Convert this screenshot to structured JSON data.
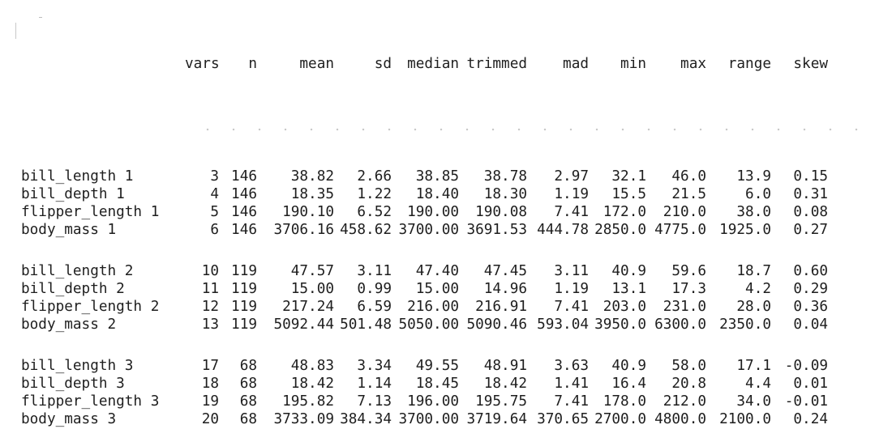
{
  "table": {
    "headers": [
      "",
      "vars",
      "n",
      "mean",
      "sd",
      "median",
      "trimmed",
      "mad",
      "min",
      "max",
      "range",
      "skew"
    ],
    "groups": [
      {
        "rows": [
          [
            "bill_length 1",
            "3",
            "146",
            "38.82",
            "2.66",
            "38.85",
            "38.78",
            "2.97",
            "32.1",
            "46.0",
            "13.9",
            "0.15"
          ],
          [
            "bill_depth 1",
            "4",
            "146",
            "18.35",
            "1.22",
            "18.40",
            "18.30",
            "1.19",
            "15.5",
            "21.5",
            "6.0",
            "0.31"
          ],
          [
            "flipper_length 1",
            "5",
            "146",
            "190.10",
            "6.52",
            "190.00",
            "190.08",
            "7.41",
            "172.0",
            "210.0",
            "38.0",
            "0.08"
          ],
          [
            "body_mass 1",
            "6",
            "146",
            "3706.16",
            "458.62",
            "3700.00",
            "3691.53",
            "444.78",
            "2850.0",
            "4775.0",
            "1925.0",
            "0.27"
          ]
        ]
      },
      {
        "rows": [
          [
            "bill_length 2",
            "10",
            "119",
            "47.57",
            "3.11",
            "47.40",
            "47.45",
            "3.11",
            "40.9",
            "59.6",
            "18.7",
            "0.60"
          ],
          [
            "bill_depth 2",
            "11",
            "119",
            "15.00",
            "0.99",
            "15.00",
            "14.96",
            "1.19",
            "13.1",
            "17.3",
            "4.2",
            "0.29"
          ],
          [
            "flipper_length 2",
            "12",
            "119",
            "217.24",
            "6.59",
            "216.00",
            "216.91",
            "7.41",
            "203.0",
            "231.0",
            "28.0",
            "0.36"
          ],
          [
            "body_mass 2",
            "13",
            "119",
            "5092.44",
            "501.48",
            "5050.00",
            "5090.46",
            "593.04",
            "3950.0",
            "6300.0",
            "2350.0",
            "0.04"
          ]
        ]
      },
      {
        "rows": [
          [
            "bill_length 3",
            "17",
            "68",
            "48.83",
            "3.34",
            "49.55",
            "48.91",
            "3.63",
            "40.9",
            "58.0",
            "17.1",
            "-0.09"
          ],
          [
            "bill_depth 3",
            "18",
            "68",
            "18.42",
            "1.14",
            "18.45",
            "18.42",
            "1.41",
            "16.4",
            "20.8",
            "4.4",
            "0.01"
          ],
          [
            "flipper_length 3",
            "19",
            "68",
            "195.82",
            "7.13",
            "196.00",
            "195.75",
            "7.41",
            "178.0",
            "212.0",
            "34.0",
            "-0.01"
          ],
          [
            "body_mass 3",
            "20",
            "68",
            "3733.09",
            "384.34",
            "3700.00",
            "3719.64",
            "370.65",
            "2700.0",
            "4800.0",
            "2100.0",
            "0.24"
          ]
        ]
      }
    ]
  }
}
